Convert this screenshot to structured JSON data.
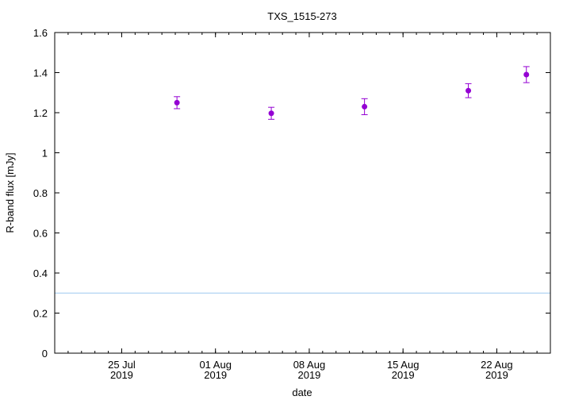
{
  "chart_data": {
    "type": "scatter",
    "title": "TXS_1515-273",
    "xlabel": "date",
    "ylabel": "R-band flux [mJy]",
    "ylim": [
      0,
      1.6
    ],
    "yticks": [
      0,
      0.2,
      0.4,
      0.6,
      0.8,
      1,
      1.2,
      1.4,
      1.6
    ],
    "ytick_labels": [
      "0",
      "0.2",
      "0.4",
      "0.6",
      "0.8",
      "1",
      "1.2",
      "1.4",
      "1.6"
    ],
    "xlim": [
      "2019-07-20",
      "2019-08-26"
    ],
    "xticks": [
      {
        "date": "2019-07-25",
        "line1": "25 Jul",
        "line2": "2019"
      },
      {
        "date": "2019-08-01",
        "line1": "01 Aug",
        "line2": "2019"
      },
      {
        "date": "2019-08-08",
        "line1": "08 Aug",
        "line2": "2019"
      },
      {
        "date": "2019-08-15",
        "line1": "15 Aug",
        "line2": "2019"
      },
      {
        "date": "2019-08-22",
        "line1": "22 Aug",
        "line2": "2019"
      }
    ],
    "points": [
      {
        "date": "2019-07-29T03:00",
        "y": 1.25,
        "err": 0.03
      },
      {
        "date": "2019-08-05T04:00",
        "y": 1.197,
        "err": 0.03
      },
      {
        "date": "2019-08-12T03:00",
        "y": 1.23,
        "err": 0.04
      },
      {
        "date": "2019-08-19T21:00",
        "y": 1.31,
        "err": 0.035
      },
      {
        "date": "2019-08-24T05:00",
        "y": 1.39,
        "err": 0.04
      }
    ],
    "reference_line": {
      "y": 0.3,
      "color": "#9ec9f0"
    },
    "marker_color": "#9400d3",
    "grid": false
  }
}
